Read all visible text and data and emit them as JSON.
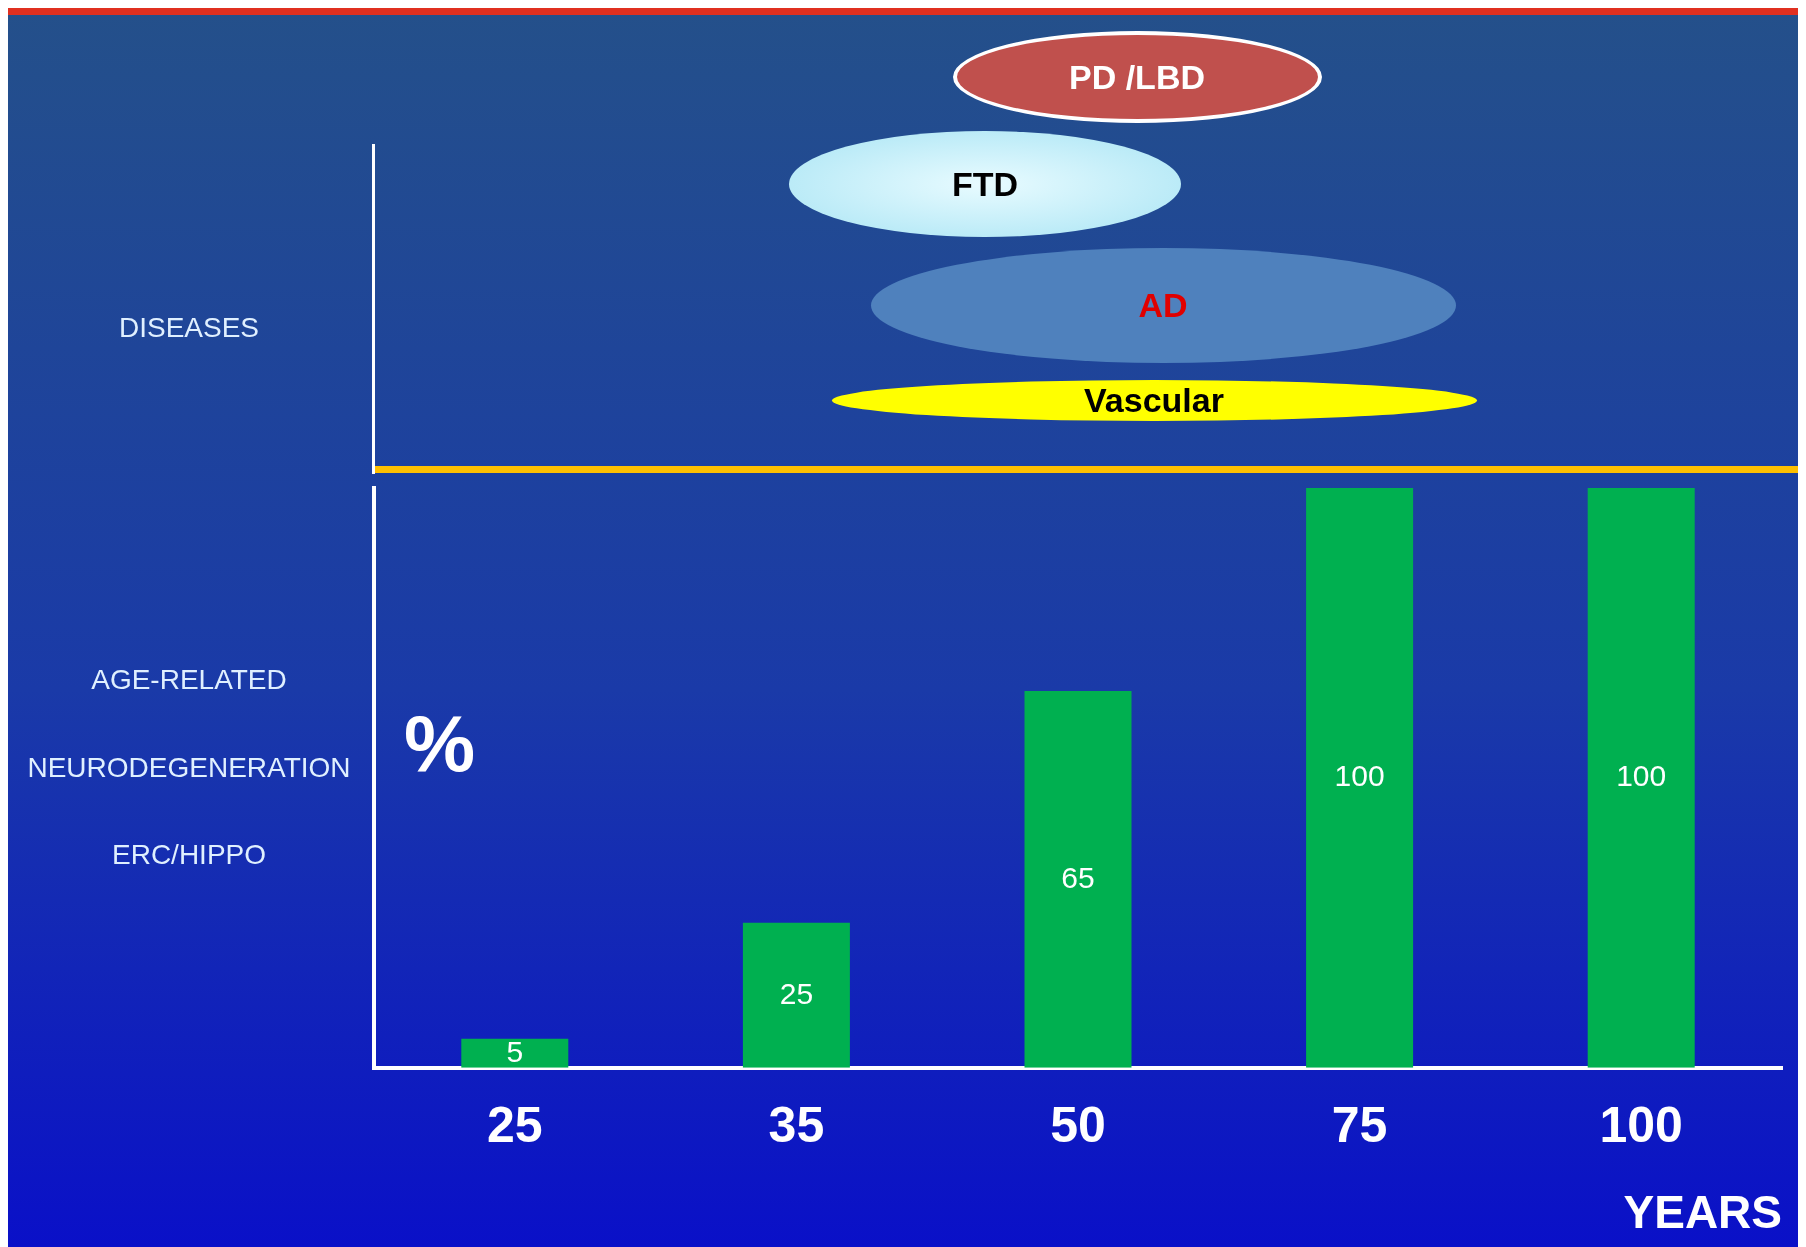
{
  "chart_data": {
    "type": "bar",
    "categories": [
      "25",
      "35",
      "50",
      "75",
      "100"
    ],
    "values": [
      5,
      25,
      65,
      100,
      100
    ],
    "color": "#00b050",
    "data_labels": true,
    "xlabel": "YEARS",
    "ylabel": "%",
    "tick_labels": "x",
    "annotations": [
      "DISEASES",
      "AGE-RELATED",
      "NEURODEGENERATION",
      "ERC/HIPPO",
      "PD /LBD",
      "FTD",
      "AD",
      "Vascular"
    ]
  }
}
